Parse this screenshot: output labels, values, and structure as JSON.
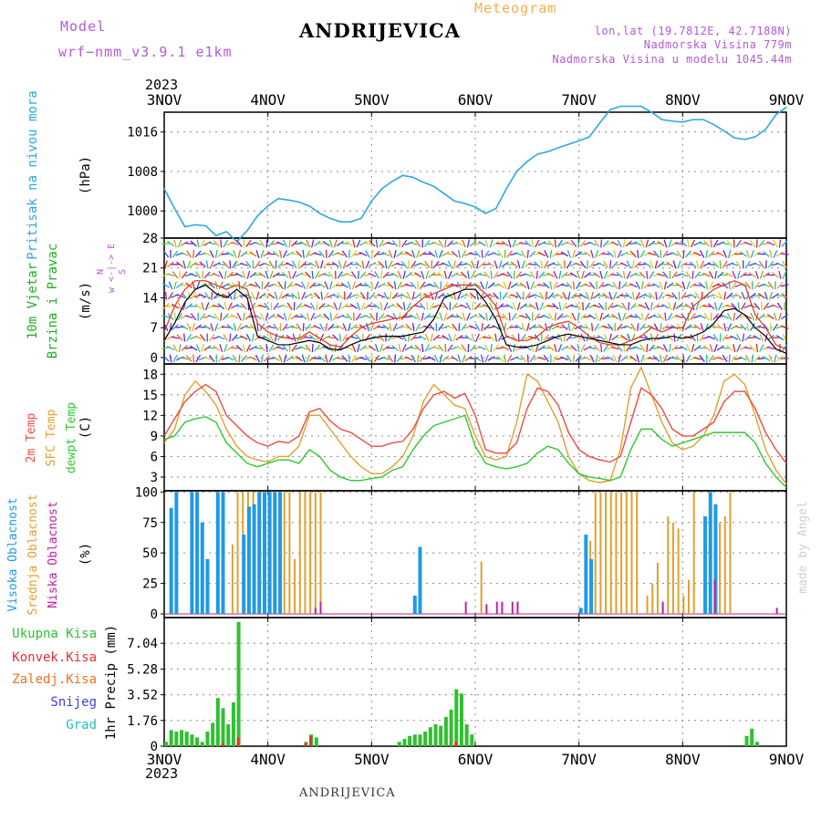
{
  "header": {
    "model_label": "Model",
    "model_version": "wrf−nmm_v3.9.1  e1km",
    "station": "ANDRIJEVICA",
    "meteogram_label": "Meteogram",
    "lonlat": "lon,lat (19.7812E, 42.7188N)",
    "elevation": "Nadmorska Visina 779m",
    "model_elevation": "Nadmorska Visina u modelu 1045.44m",
    "year_top": "2023",
    "year_bottom": "2023"
  },
  "footer": {
    "station": "ANDRIJEVICA",
    "credit": "made by Angel"
  },
  "colors": {
    "pressure": "#2ba8e6",
    "temp2m": "#f04a40",
    "sfc_temp": "#e0a030",
    "dewpoint": "#30c830",
    "high_cloud": "#1f9ae6",
    "mid_cloud": "#e0a030",
    "low_cloud": "#c020a0",
    "precip_total": "#30c030",
    "precip_conv": "#e83030",
    "precip_frz": "#f07020",
    "precip_snow": "#4040e0",
    "precip_grad": "#20c0c0",
    "wind_speed": "#000000",
    "wind_gust": "#e04030"
  },
  "chart_data": [
    {
      "type": "line",
      "panel": "pressure",
      "ylabel": "(hPa)",
      "side_labels": [
        "Pritisak na nivou mora"
      ],
      "x_ticks": [
        "3NOV",
        "4NOV",
        "5NOV",
        "6NOV",
        "7NOV",
        "8NOV",
        "9NOV"
      ],
      "yticks": [
        1000,
        1008,
        1016
      ],
      "ylim": [
        994.5,
        1020
      ],
      "grid": true,
      "series": [
        {
          "values": [
            1004.5,
            1000.5,
            996.8,
            997.2,
            997.0,
            995.0,
            995.8,
            993.8,
            996,
            999,
            1001,
            1002.5,
            1002.2,
            1001.8,
            1001,
            999.5,
            998.5,
            997.8,
            997.8,
            998.5,
            1002,
            1004.5,
            1006,
            1007.2,
            1006.8,
            1005.8,
            1005,
            1003.5,
            1002,
            1001.5,
            1000.8,
            999.5,
            1000.5,
            1004.5,
            1008,
            1010,
            1011.5,
            1012,
            1012.8,
            1013.5,
            1014.2,
            1015,
            1017.8,
            1020.5,
            1021.2,
            1021.2,
            1021.2,
            1020,
            1018.5,
            1018.2,
            1018,
            1018.5,
            1018.5,
            1017.5,
            1016.2,
            1014.8,
            1014.5,
            1015,
            1016.5,
            1019.5,
            1021
          ]
        }
      ]
    },
    {
      "type": "line",
      "panel": "wind",
      "ylabel": "(m/s)",
      "side_labels": [
        "10m Vjetar",
        "Brzina i Pravac"
      ],
      "compass": [
        "N",
        "w  <-|->  E",
        "S"
      ],
      "yticks": [
        0,
        7,
        14,
        21,
        28
      ],
      "ylim": [
        -1.5,
        28
      ],
      "grid": true,
      "series": [
        {
          "name": "speed",
          "values": [
            4,
            8,
            13,
            16,
            17,
            15,
            14,
            16,
            14,
            5,
            4,
            3,
            3,
            3.5,
            4,
            3.5,
            2,
            1.8,
            3,
            4,
            4.5,
            5,
            5,
            5,
            5.5,
            6,
            9,
            14,
            15,
            16,
            16,
            13,
            9,
            3,
            2.5,
            2.5,
            3,
            4,
            5,
            5.5,
            5,
            4.5,
            4,
            3.5,
            3,
            3,
            4,
            4.5,
            4.5,
            5,
            4.5,
            5,
            6,
            8,
            11,
            11.5,
            10,
            7,
            5,
            2,
            1
          ]
        },
        {
          "name": "gust",
          "values": [
            6,
            12,
            16,
            18,
            18,
            17,
            16,
            17,
            16,
            8,
            6,
            5,
            4.5,
            4.5,
            6,
            4.5,
            3,
            2.5,
            5,
            7,
            8,
            8.5,
            9,
            9.5,
            12,
            14,
            15,
            16,
            17,
            17,
            17,
            15,
            12,
            5,
            4,
            4,
            5,
            7,
            8,
            8.5,
            7,
            5,
            3.5,
            3,
            3,
            4,
            5,
            7,
            6,
            7,
            7,
            12,
            14,
            16,
            17,
            18,
            17,
            10,
            7,
            3,
            2
          ]
        }
      ]
    },
    {
      "type": "line",
      "panel": "temperature",
      "ylabel": "(C)",
      "side_labels": [
        "2m Temp",
        "SFC Temp",
        "dewpt Temp"
      ],
      "yticks": [
        3,
        6,
        9,
        12,
        15,
        18
      ],
      "ylim": [
        1,
        19.5
      ],
      "grid": true,
      "series": [
        {
          "name": "2m Temp",
          "values": [
            9,
            11.5,
            14,
            15.5,
            16.5,
            15.5,
            12,
            10.5,
            9,
            8,
            7.5,
            8.2,
            8,
            9,
            12.5,
            13,
            11.2,
            10,
            9.5,
            8.5,
            7.5,
            7.5,
            8,
            8.2,
            10,
            13,
            15,
            15.5,
            14.5,
            15.2,
            12,
            7,
            6.5,
            6.5,
            8,
            13,
            16,
            15.5,
            13.5,
            9.5,
            7,
            6,
            5.5,
            5.2,
            6,
            11,
            16,
            15,
            13,
            10,
            9,
            9,
            10,
            11,
            14,
            15.5,
            15.5,
            13,
            9.5,
            7,
            5
          ]
        },
        {
          "name": "SFC Temp",
          "values": [
            8,
            10,
            15,
            17,
            15.5,
            13.5,
            10,
            7.5,
            6,
            5.5,
            5.2,
            6,
            6,
            7.5,
            12,
            12,
            10,
            8,
            6,
            4.5,
            3.5,
            3.5,
            4.5,
            6,
            9,
            14,
            16.5,
            15,
            13.5,
            13,
            9,
            6,
            5.5,
            6,
            11,
            18,
            17,
            14,
            11,
            6,
            3.5,
            2.5,
            2.2,
            2.5,
            7,
            16,
            19,
            15,
            11,
            8,
            7,
            7.5,
            9,
            12,
            17,
            18,
            16.5,
            12,
            7,
            4,
            2
          ]
        },
        {
          "name": "dewpt Temp",
          "values": [
            8.5,
            9,
            11,
            11.5,
            11.8,
            11,
            8,
            6.5,
            5,
            4.5,
            5,
            5.5,
            5.5,
            5,
            7,
            6,
            4,
            3,
            2.5,
            2.5,
            2.8,
            3,
            4,
            4.5,
            7,
            9,
            10.5,
            11,
            11.5,
            12,
            7.5,
            5,
            4.5,
            4.2,
            4.5,
            5,
            6.5,
            7.5,
            7,
            5,
            3.5,
            3,
            2.8,
            2.5,
            3,
            7,
            10,
            10,
            8.5,
            7.5,
            8,
            8.5,
            9,
            9.5,
            9.5,
            9.5,
            9.5,
            8,
            5,
            3,
            1.5
          ]
        }
      ]
    },
    {
      "type": "bar",
      "panel": "clouds",
      "ylabel": "(%)",
      "side_labels": [
        "Visoka Oblacnost",
        "Srednja Oblacnost",
        "Niska Oblacnost"
      ],
      "yticks": [
        0,
        25,
        50,
        75,
        100
      ],
      "ylim": [
        -3,
        101
      ],
      "grid": true,
      "series": [
        {
          "name": "Visoka Oblacnost",
          "points": [
            [
              1,
              87
            ],
            [
              2,
              100
            ],
            [
              5,
              100
            ],
            [
              6,
              100
            ],
            [
              7,
              75
            ],
            [
              8,
              45
            ],
            [
              10,
              100
            ],
            [
              11,
              100
            ],
            [
              15,
              65
            ],
            [
              16,
              88
            ],
            [
              17,
              90
            ],
            [
              18,
              100
            ],
            [
              19,
              100
            ],
            [
              20,
              100
            ],
            [
              21,
              100
            ],
            [
              22,
              100
            ],
            [
              49,
              55
            ],
            [
              48,
              15
            ],
            [
              80,
              5
            ],
            [
              81,
              65
            ],
            [
              82,
              45
            ],
            [
              104,
              80
            ],
            [
              105,
              100
            ],
            [
              106,
              90
            ]
          ]
        },
        {
          "name": "Srednja Oblacnost",
          "points": [
            [
              13,
              57
            ],
            [
              14,
              100
            ],
            [
              15,
              100
            ],
            [
              16,
              100
            ],
            [
              17,
              100
            ],
            [
              18,
              100
            ],
            [
              19,
              100
            ],
            [
              20,
              100
            ],
            [
              21,
              100
            ],
            [
              22,
              100
            ],
            [
              23,
              100
            ],
            [
              24,
              100
            ],
            [
              25,
              45
            ],
            [
              26,
              100
            ],
            [
              27,
              100
            ],
            [
              28,
              100
            ],
            [
              29,
              100
            ],
            [
              30,
              100
            ],
            [
              61,
              43
            ],
            [
              82,
              60
            ],
            [
              83,
              100
            ],
            [
              84,
              100
            ],
            [
              85,
              100
            ],
            [
              86,
              100
            ],
            [
              87,
              100
            ],
            [
              88,
              100
            ],
            [
              89,
              100
            ],
            [
              90,
              100
            ],
            [
              91,
              100
            ],
            [
              93,
              15
            ],
            [
              94,
              25
            ],
            [
              95,
              42
            ],
            [
              96,
              5
            ],
            [
              97,
              80
            ],
            [
              98,
              75
            ],
            [
              99,
              70
            ],
            [
              100,
              15
            ],
            [
              101,
              28
            ],
            [
              102,
              100
            ],
            [
              107,
              75
            ],
            [
              108,
              80
            ],
            [
              109,
              100
            ]
          ]
        },
        {
          "name": "Niska Oblacnost",
          "points": [
            [
              29,
              5
            ],
            [
              30,
              10
            ],
            [
              58,
              10
            ],
            [
              62,
              8
            ],
            [
              64,
              10
            ],
            [
              65,
              10
            ],
            [
              67,
              10
            ],
            [
              68,
              10
            ],
            [
              96,
              10
            ],
            [
              106,
              28
            ],
            [
              118,
              5
            ]
          ]
        }
      ]
    },
    {
      "type": "bar",
      "panel": "precipitation",
      "ylabel": "1hr Precip (mm)",
      "side_labels": [
        "Ukupna Kisa",
        "Konvek.Kisa",
        "Zaledj.Kisa",
        "Snijeg",
        "Grad"
      ],
      "x_ticks": [
        "3NOV",
        "4NOV",
        "5NOV",
        "6NOV",
        "7NOV",
        "8NOV",
        "9NOV"
      ],
      "yticks": [
        0,
        1.76,
        3.52,
        5.28,
        7.04
      ],
      "ylim": [
        0,
        8.8
      ],
      "grid": true,
      "series": [
        {
          "name": "Ukupna Kisa",
          "points": [
            [
              0,
              0.3
            ],
            [
              1,
              1.1
            ],
            [
              2,
              1.0
            ],
            [
              3,
              1.1
            ],
            [
              4,
              1.0
            ],
            [
              5,
              0.8
            ],
            [
              6,
              0.6
            ],
            [
              7,
              0.3
            ],
            [
              8,
              1.0
            ],
            [
              9,
              1.6
            ],
            [
              10,
              3.3
            ],
            [
              11,
              2.6
            ],
            [
              12,
              1.5
            ],
            [
              13,
              3.0
            ],
            [
              14,
              8.5
            ],
            [
              27,
              0.3
            ],
            [
              28,
              0.8
            ],
            [
              29,
              0.6
            ],
            [
              45,
              0.3
            ],
            [
              46,
              0.5
            ],
            [
              47,
              0.7
            ],
            [
              48,
              0.8
            ],
            [
              49,
              0.8
            ],
            [
              50,
              1.0
            ],
            [
              51,
              1.3
            ],
            [
              52,
              1.5
            ],
            [
              53,
              1.4
            ],
            [
              54,
              2.0
            ],
            [
              55,
              2.5
            ],
            [
              56,
              3.9
            ],
            [
              57,
              3.6
            ],
            [
              58,
              1.5
            ],
            [
              59,
              0.8
            ],
            [
              112,
              0.7
            ],
            [
              113,
              1.2
            ],
            [
              114,
              0.3
            ]
          ]
        },
        {
          "name": "Konvek.Kisa",
          "points": [
            [
              11,
              0.2
            ],
            [
              14,
              0.6
            ],
            [
              27,
              0.2
            ],
            [
              28,
              0.7
            ],
            [
              56,
              0.3
            ]
          ]
        }
      ]
    }
  ]
}
